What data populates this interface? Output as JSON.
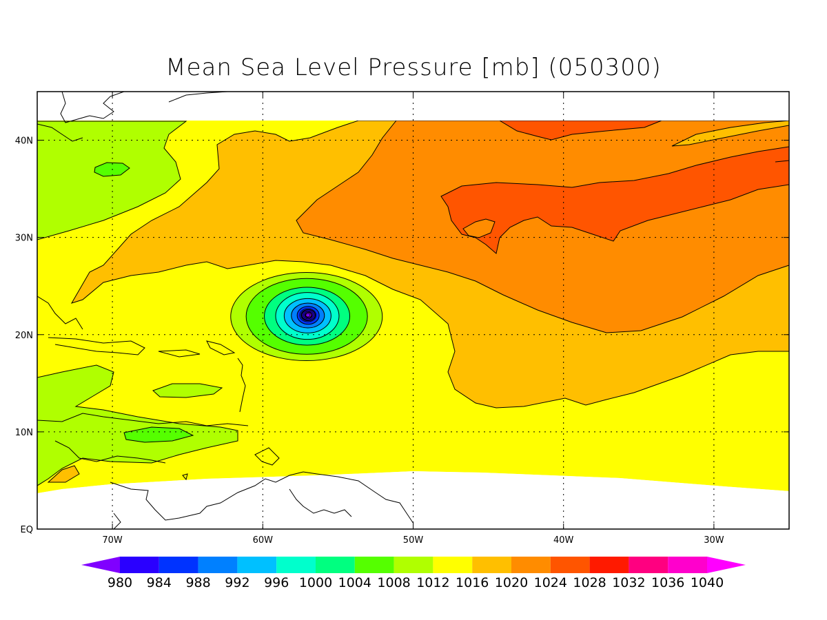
{
  "title": "Mean Sea Level Pressure [mb] (050300)",
  "map": {
    "lon_range": [
      -75,
      -25
    ],
    "lat_range": [
      0,
      45
    ],
    "data_lat_top": 42,
    "lon_ticks": [
      {
        "value": -70,
        "label": "70W"
      },
      {
        "value": -60,
        "label": "60W"
      },
      {
        "value": -50,
        "label": "50W"
      },
      {
        "value": -40,
        "label": "40W"
      },
      {
        "value": -30,
        "label": "30W"
      }
    ],
    "lat_ticks": [
      {
        "value": 0,
        "label": "EQ"
      },
      {
        "value": 10,
        "label": "10N"
      },
      {
        "value": 20,
        "label": "20N"
      },
      {
        "value": 30,
        "label": "30N"
      },
      {
        "value": 40,
        "label": "40N"
      }
    ],
    "grid": "dotted",
    "low_center": {
      "lon": -57,
      "lat": 22,
      "min_pressure_mb": 978
    }
  },
  "colorbar": {
    "levels": [
      "980",
      "984",
      "988",
      "992",
      "996",
      "1000",
      "1004",
      "1008",
      "1012",
      "1016",
      "1020",
      "1024",
      "1028",
      "1032",
      "1036",
      "1040"
    ],
    "colors": [
      "#8000ff",
      "#2a00ff",
      "#0033ff",
      "#0080ff",
      "#00c0ff",
      "#00ffcc",
      "#00ff80",
      "#55ff00",
      "#b0ff00",
      "#ffff00",
      "#ffbf00",
      "#ff8c00",
      "#ff5500",
      "#ff1a00",
      "#ff0080",
      "#ff00cc",
      "#ff00ff"
    ],
    "extends": "both"
  }
}
